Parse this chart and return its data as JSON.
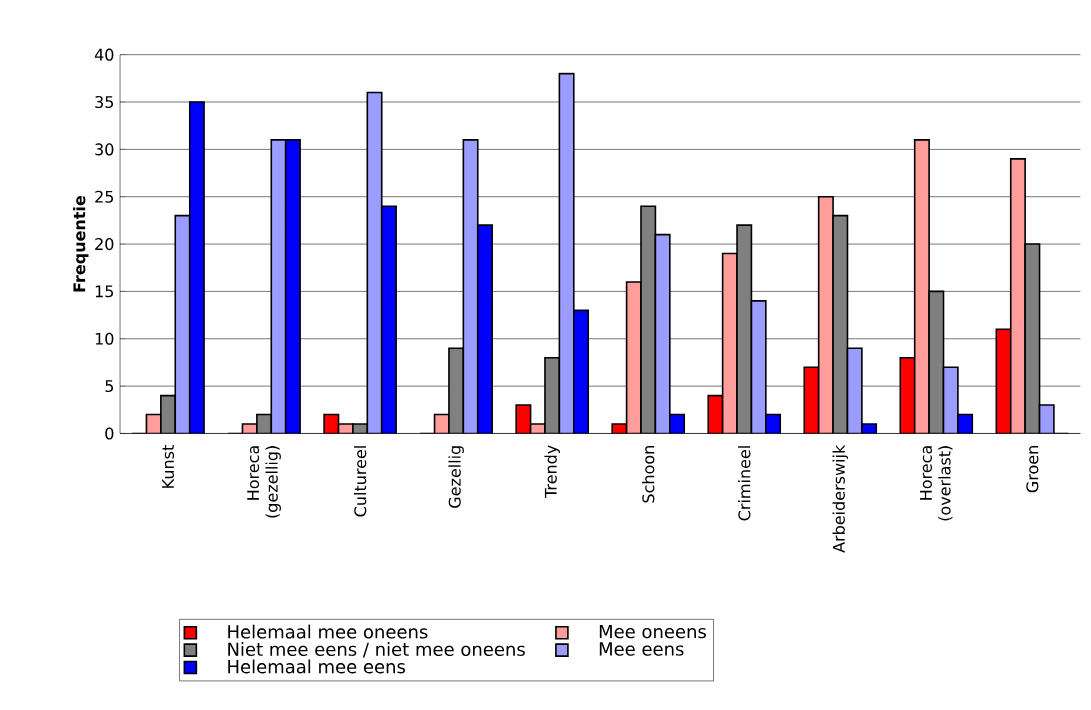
{
  "chart_data": {
    "type": "bar",
    "ylabel": "**Frequentie**",
    "categories": [
      "Kunst",
      "Horeca (gezellig)",
      "Cultureel",
      "Gezellig",
      "Trendy",
      "Schoon",
      "Crimineel",
      "Arbeiderswijk",
      "Horeca (overlast)",
      "Groen"
    ],
    "series": [
      {
        "name": "Helemaal mee oneens",
        "color": "#ff0000",
        "values": [
          0,
          0,
          2,
          0,
          3,
          1,
          4,
          7,
          8,
          11
        ]
      },
      {
        "name": "Mee oneens",
        "color": "#ff9c9c",
        "values": [
          2,
          1,
          1,
          2,
          1,
          16,
          19,
          25,
          31,
          29
        ]
      },
      {
        "name": "Niet mee eens / niet mee oneens",
        "color": "#808080",
        "values": [
          4,
          2,
          1,
          9,
          8,
          24,
          22,
          23,
          15,
          20
        ]
      },
      {
        "name": "Mee eens",
        "color": "#9c9cff",
        "values": [
          23,
          31,
          36,
          31,
          38,
          21,
          14,
          9,
          7,
          3
        ]
      },
      {
        "name": "Helemaal mee eens",
        "color": "#0000ff",
        "values": [
          35,
          31,
          24,
          22,
          13,
          2,
          2,
          1,
          2,
          0
        ]
      }
    ],
    "ylim": [
      0,
      40
    ],
    "yticks": [
      0,
      5,
      10,
      15,
      20,
      25,
      30,
      35,
      40
    ],
    "grid": "y",
    "legend": "bottom"
  }
}
